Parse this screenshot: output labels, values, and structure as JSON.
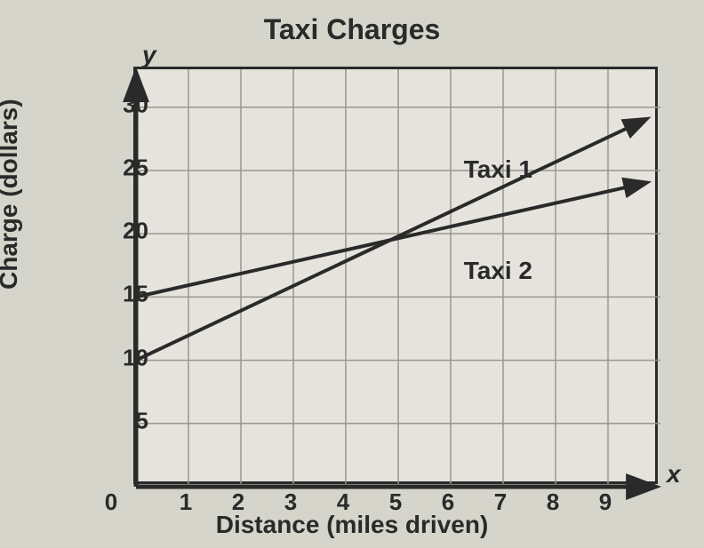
{
  "chart": {
    "type": "line",
    "title": "Taxi Charges",
    "title_fontsize": 32,
    "x_axis": {
      "title": "Distance (miles driven)",
      "var_label": "x",
      "ticks": [
        0,
        1,
        2,
        3,
        4,
        5,
        6,
        7,
        8,
        9
      ],
      "lim": [
        0,
        10
      ],
      "tick_fontsize": 26,
      "title_fontsize": 28
    },
    "y_axis": {
      "title": "Charge (dollars)",
      "var_label": "y",
      "ticks": [
        5,
        10,
        15,
        20,
        25,
        30
      ],
      "lim": [
        0,
        33
      ],
      "tick_fontsize": 26,
      "title_fontsize": 28
    },
    "grid": {
      "color": "#9a9890",
      "line_width": 1.5
    },
    "background_color": "#e8e6df",
    "border_color": "#2a2a2a",
    "border_width": 3,
    "series": [
      {
        "name": "Taxi 1",
        "label_pos": {
          "x": 6.3,
          "y": 26
        },
        "points": [
          [
            0,
            10
          ],
          [
            9.7,
            29
          ]
        ],
        "color": "#2a2a2a",
        "line_width": 4,
        "arrow": true
      },
      {
        "name": "Taxi 2",
        "label_pos": {
          "x": 6.3,
          "y": 18
        },
        "points": [
          [
            0,
            15
          ],
          [
            9.7,
            24
          ]
        ],
        "color": "#2a2a2a",
        "line_width": 4,
        "arrow": true
      }
    ],
    "axis_arrows": {
      "y": {
        "x": 0,
        "y": 33
      },
      "x": {
        "x": 10,
        "y": 0
      }
    }
  }
}
